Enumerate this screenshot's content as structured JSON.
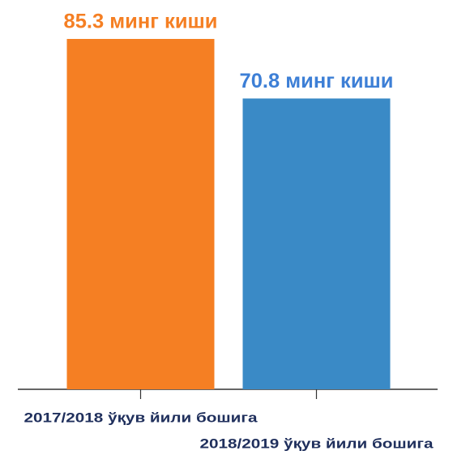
{
  "chart_data": {
    "type": "bar",
    "categories": [
      "2017/2018 ўқув йили бошига",
      "2018/2019 ўқув йили бошига"
    ],
    "values": [
      85.3,
      70.8
    ],
    "value_labels": [
      "85.3 минг киши",
      "70.8 минг киши"
    ],
    "colors": [
      "#f57f23",
      "#3a8ac6"
    ],
    "label_colors": [
      "#f57f23",
      "#3d7fd6"
    ],
    "grid": false
  }
}
